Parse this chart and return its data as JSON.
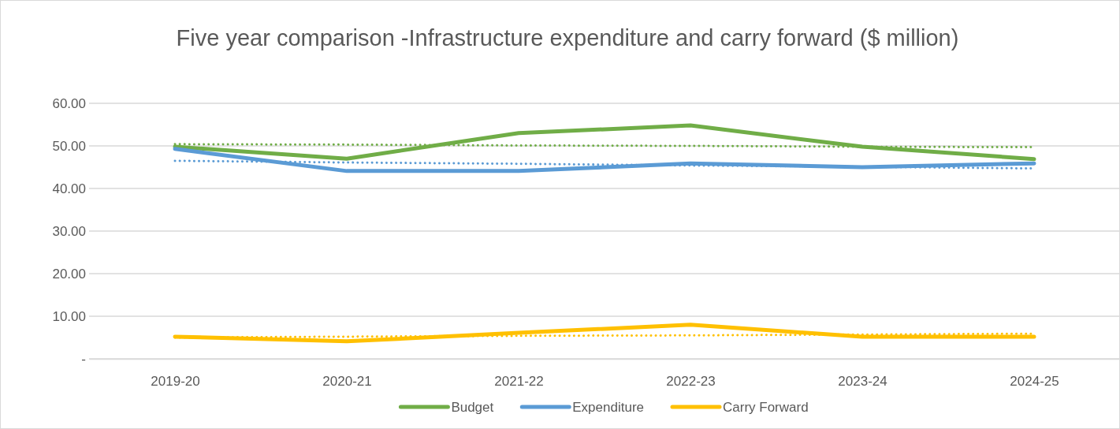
{
  "chart_data": {
    "type": "line",
    "title": "Five year comparison -Infrastructure expenditure and carry forward ($ million)",
    "categories": [
      "2019-20",
      "2020-21",
      "2021-22",
      "2022-23",
      "2023-24",
      "2024-25"
    ],
    "series": [
      {
        "name": "Budget",
        "color": "#70ad47",
        "values": [
          49.8,
          47.0,
          53.0,
          54.8,
          49.8,
          46.9
        ]
      },
      {
        "name": "Expenditure",
        "color": "#5b9bd5",
        "values": [
          49.3,
          44.1,
          44.1,
          45.9,
          45.0,
          45.9
        ]
      },
      {
        "name": "Carry Forward",
        "color": "#ffc000",
        "values": [
          5.2,
          4.1,
          6.1,
          8.0,
          5.2,
          5.2
        ]
      },
      {
        "color": "#70ad47",
        "line_style": "dotted",
        "values": [
          50.4,
          50.3,
          50.1,
          50.0,
          49.8,
          49.7
        ]
      },
      {
        "color": "#5b9bd5",
        "line_style": "dotted",
        "values": [
          46.5,
          46.1,
          45.8,
          45.4,
          45.1,
          44.7
        ]
      },
      {
        "color": "#ffc000",
        "line_style": "dotted",
        "values": [
          5.0,
          5.2,
          5.4,
          5.5,
          5.7,
          5.9
        ]
      }
    ],
    "ylim": [
      0,
      60
    ],
    "yticks": [
      {
        "value": 0,
        "label": "-"
      },
      {
        "value": 10,
        "label": "10.00"
      },
      {
        "value": 20,
        "label": "20.00"
      },
      {
        "value": 30,
        "label": "30.00"
      },
      {
        "value": 40,
        "label": "40.00"
      },
      {
        "value": 50,
        "label": "50.00"
      },
      {
        "value": 60,
        "label": "60.00"
      }
    ],
    "grid": "y",
    "legend": "bottom",
    "marker": "none",
    "line_style": "solid"
  }
}
